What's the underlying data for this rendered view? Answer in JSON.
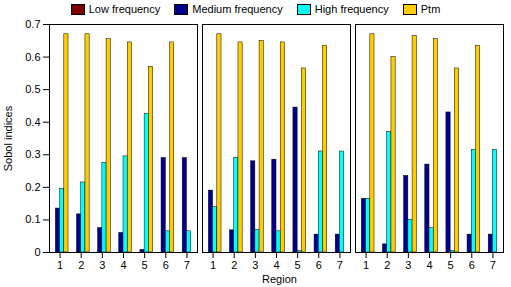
{
  "chart_data": {
    "type": "bar",
    "y_label": "Sobol indices",
    "x_label": "Region",
    "categories": [
      1,
      2,
      3,
      4,
      5,
      6,
      7
    ],
    "ylim": [
      0,
      0.7
    ],
    "yticks": [
      0,
      0.1,
      0.2,
      0.3,
      0.4,
      0.5,
      0.6,
      0.7
    ],
    "legend": "top",
    "series": [
      {
        "name": "Low frequency",
        "color": "#800000",
        "values": [
          [
            0,
            0,
            0,
            0,
            0,
            0,
            0
          ],
          [
            0,
            0,
            0,
            0,
            0,
            0,
            0
          ],
          [
            0,
            0,
            0,
            0,
            0,
            0,
            0
          ]
        ]
      },
      {
        "name": "Medium frequency",
        "color": "#00008f",
        "values": [
          [
            0.135,
            0.117,
            0.075,
            0.06,
            0.008,
            0.29,
            0.29
          ],
          [
            0.19,
            0.068,
            0.28,
            0.285,
            0.445,
            0.055,
            0.055
          ],
          [
            0.165,
            0.025,
            0.235,
            0.27,
            0.43,
            0.055,
            0.055
          ]
        ]
      },
      {
        "name": "High frequency",
        "color": "#00ffff",
        "values": [
          [
            0.195,
            0.215,
            0.275,
            0.295,
            0.425,
            0.065,
            0.065
          ],
          [
            0.14,
            0.29,
            0.07,
            0.065,
            0.005,
            0.31,
            0.31
          ],
          [
            0.165,
            0.37,
            0.1,
            0.075,
            0.005,
            0.315,
            0.315
          ]
        ]
      },
      {
        "name": "Ptm",
        "color": "#ffcc00",
        "values": [
          [
            0.67,
            0.67,
            0.655,
            0.645,
            0.57,
            0.645,
            null
          ],
          [
            0.67,
            0.645,
            0.65,
            0.645,
            0.565,
            0.635,
            null
          ],
          [
            0.67,
            0.6,
            0.665,
            0.655,
            0.565,
            0.635,
            null
          ]
        ]
      }
    ]
  }
}
